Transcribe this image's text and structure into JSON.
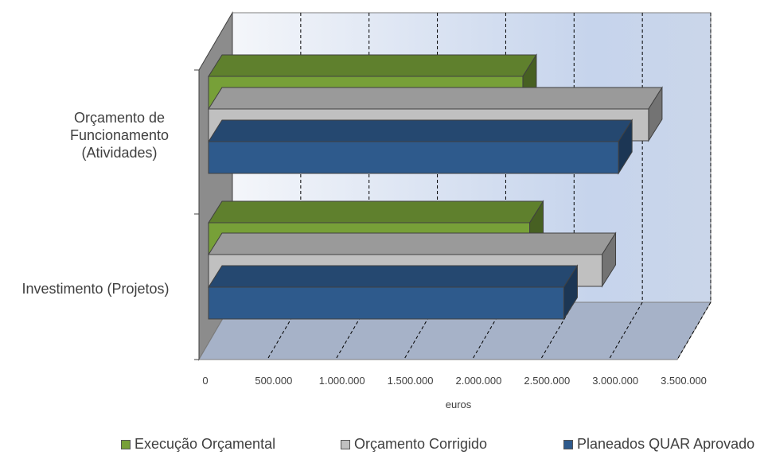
{
  "chart_data": {
    "type": "bar",
    "orientation": "horizontal",
    "categories": [
      "Orçamento de\nFuncionamento\n(Atividades)",
      "Investimento (Projetos)"
    ],
    "series": [
      {
        "name": "Execução Orçamental",
        "color": "#77a038",
        "values": [
          2300000,
          2350000
        ]
      },
      {
        "name": "Orçamento Corrigido",
        "color": "#c0c0c0",
        "values": [
          3220000,
          2880000
        ]
      },
      {
        "name": "Planeados QUAR Aprovado",
        "color": "#2e5a8c",
        "values": [
          3000000,
          2600000
        ]
      }
    ],
    "xlim": [
      0,
      3500000
    ],
    "x_ticks": [
      "0",
      "500.000",
      "1.000.000",
      "1.500.000",
      "2.000.000",
      "2.500.000",
      "3.000.000",
      "3.500.000"
    ],
    "xlabel": "euros",
    "ylabel": "",
    "grid": true,
    "legend_position": "bottom"
  }
}
